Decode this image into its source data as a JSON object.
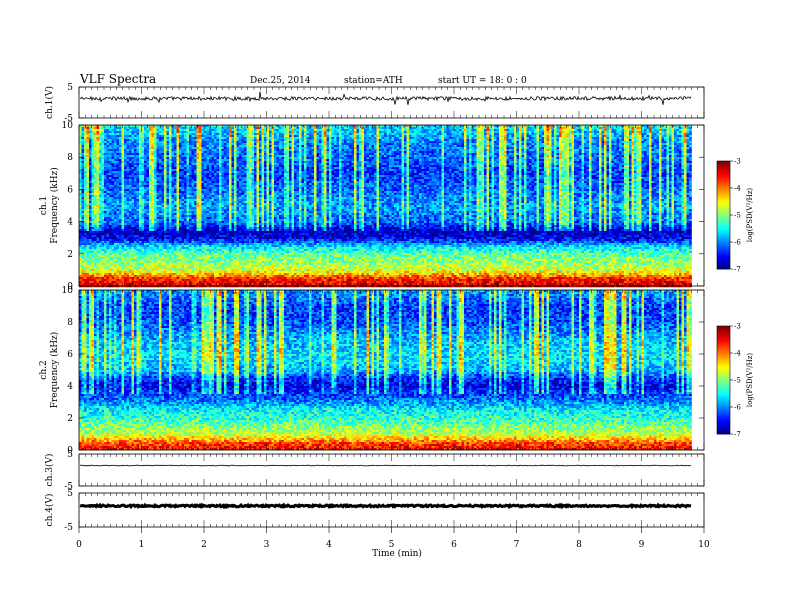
{
  "header": {
    "title": "VLF  Spectra",
    "date": "Dec.25, 2014",
    "station": "station=ATH",
    "start": "start  UT =   18: 0  : 0"
  },
  "chart_data": [
    {
      "type": "line",
      "panel": "ch1-waveform",
      "ylabel": "ch.1(V)",
      "ylim": [
        -5,
        5
      ],
      "ytick_labels": [
        "5",
        "-5"
      ],
      "xlim": [
        0,
        10
      ],
      "approx_level_V": 1.3
    },
    {
      "type": "heatmap",
      "panel": "ch1-spectrogram",
      "ylabel": "ch.1",
      "ylabel2": "Frequency  (kHz)",
      "ylim": [
        0,
        10
      ],
      "ytick_labels": [
        "0",
        "2",
        "4",
        "6",
        "8",
        "10"
      ],
      "data_end_min": 9.8,
      "colorbar": {
        "label": "log(PSD(V²/Hz)",
        "ticks": [
          "-3",
          "-4",
          "-5",
          "-6",
          "-7"
        ],
        "range": [
          -7,
          -3
        ]
      },
      "profile_kHz_log_psd": [
        [
          0,
          -3.3
        ],
        [
          0.5,
          -3.6
        ],
        [
          1,
          -4.6
        ],
        [
          1.5,
          -4.9
        ],
        [
          2,
          -5.1
        ],
        [
          2.5,
          -5.6
        ],
        [
          3,
          -6.5
        ],
        [
          3.5,
          -6.8
        ],
        [
          4,
          -6.1
        ],
        [
          5,
          -5.9
        ],
        [
          6,
          -6.1
        ],
        [
          7,
          -6.3
        ],
        [
          8,
          -6.1
        ],
        [
          9,
          -6.0
        ],
        [
          10,
          -5.6
        ]
      ]
    },
    {
      "type": "heatmap",
      "panel": "ch2-spectrogram",
      "ylabel": "ch.2",
      "ylabel2": "Frequency  (kHz)",
      "ylim": [
        0,
        10
      ],
      "ytick_labels": [
        "0",
        "2",
        "4",
        "6",
        "8",
        "10"
      ],
      "data_end_min": 9.8,
      "colorbar": {
        "label": "log(PSD(V²/Hz)",
        "ticks": [
          "-3",
          "-4",
          "-5",
          "-6",
          "-7"
        ],
        "range": [
          -7,
          -3
        ]
      },
      "profile_kHz_log_psd": [
        [
          0,
          -3.4
        ],
        [
          0.5,
          -3.8
        ],
        [
          1,
          -4.7
        ],
        [
          1.5,
          -5.0
        ],
        [
          2,
          -5.3
        ],
        [
          2.5,
          -5.5
        ],
        [
          3,
          -5.9
        ],
        [
          4,
          -6.6
        ],
        [
          4.5,
          -6.4
        ],
        [
          5,
          -5.8
        ],
        [
          6,
          -5.6
        ],
        [
          7,
          -5.8
        ],
        [
          8,
          -6.2
        ],
        [
          9,
          -6.3
        ],
        [
          10,
          -5.9
        ]
      ]
    },
    {
      "type": "line",
      "panel": "ch3-waveform",
      "ylabel": "ch.3(V)",
      "ylim": [
        -5,
        5
      ],
      "ytick_labels": [
        "5",
        "-5"
      ],
      "xlim": [
        0,
        10
      ],
      "approx_level_V": 1.4
    },
    {
      "type": "line",
      "panel": "ch4-waveform",
      "ylabel": "ch.4(V)",
      "ylim": [
        -5,
        5
      ],
      "ytick_labels": [
        "5",
        "-5"
      ],
      "xlim": [
        0,
        10
      ],
      "approx_level_V": 1.2
    }
  ],
  "x_axis": {
    "label": "Time  (min)",
    "ticks": [
      "0",
      "1",
      "2",
      "3",
      "4",
      "5",
      "6",
      "7",
      "8",
      "9",
      "10"
    ],
    "range": [
      0,
      10
    ]
  },
  "colors": {
    "waveform": "#000000",
    "frame": "#000000",
    "background": "#ffffff"
  }
}
